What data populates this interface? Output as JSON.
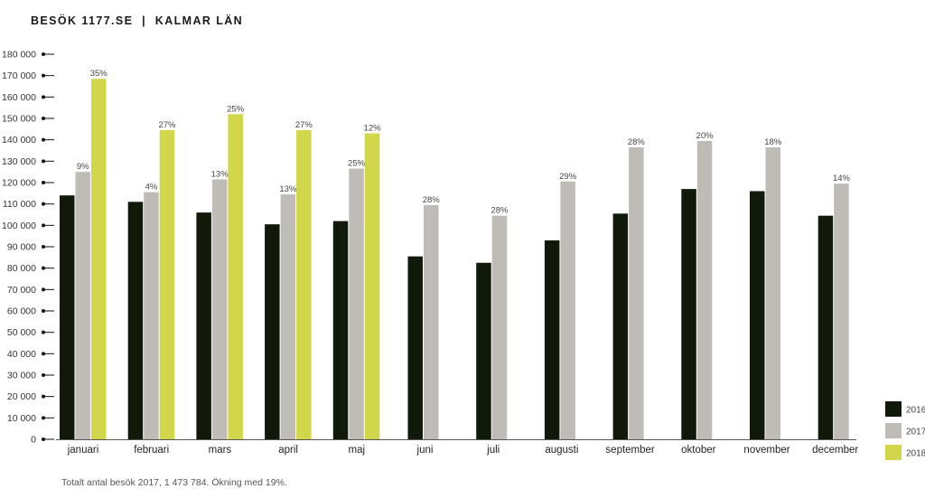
{
  "header": {
    "title": "BESÖK 1177.SE  |  KALMAR LÄN"
  },
  "footnote": "Totalt antal besök 2017, 1 473 784. Ökning med 19%.",
  "colors": {
    "2016": "#111a0a",
    "2017": "#bfbbb6",
    "2018": "#d2d64b"
  },
  "chart_data": {
    "type": "bar",
    "title": "BESÖK 1177.SE  |  KALMAR LÄN",
    "xlabel": "",
    "ylabel": "",
    "ylim": [
      0,
      180000
    ],
    "y_ticks": [
      "0",
      "10 000",
      "20 000",
      "30 000",
      "40 000",
      "50 000",
      "60 000",
      "70 000",
      "80 000",
      "90 000",
      "100 000",
      "110 000",
      "120 000",
      "130 000",
      "140 000",
      "150 000",
      "160 000",
      "170 000",
      "180 000"
    ],
    "categories": [
      "januari",
      "februari",
      "mars",
      "april",
      "maj",
      "juni",
      "juli",
      "augusti",
      "september",
      "oktober",
      "november",
      "december"
    ],
    "series": [
      {
        "name": "2016",
        "values": [
          114000,
          111000,
          106000,
          100500,
          102000,
          85500,
          82500,
          93000,
          105500,
          117000,
          116000,
          104500
        ]
      },
      {
        "name": "2017",
        "values": [
          125000,
          115500,
          121500,
          114500,
          126500,
          109500,
          104500,
          120500,
          136500,
          139500,
          136500,
          119500
        ]
      },
      {
        "name": "2018",
        "values": [
          168500,
          144500,
          152000,
          144500,
          143000,
          null,
          null,
          null,
          null,
          null,
          null,
          null
        ]
      }
    ],
    "annotations": {
      "2017": [
        "9%",
        "4%",
        "13%",
        "13%",
        "25%",
        "28%",
        "28%",
        "29%",
        "28%",
        "20%",
        "18%",
        "14%"
      ],
      "2018": [
        "35%",
        "27%",
        "25%",
        "27%",
        "12%",
        "",
        "",
        "",
        "",
        "",
        "",
        ""
      ]
    },
    "legend": {
      "placement": "bottom-right"
    },
    "grid": false
  }
}
